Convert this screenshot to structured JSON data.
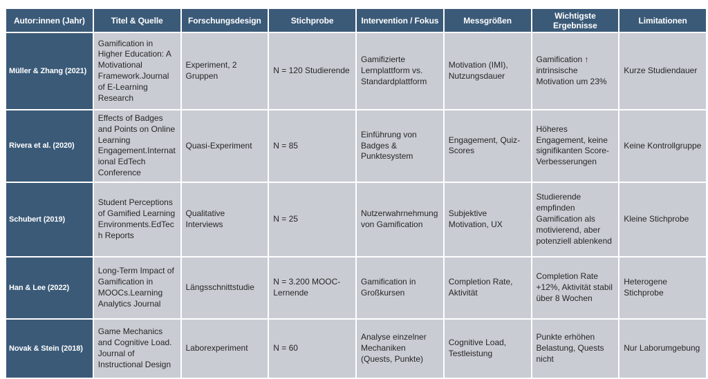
{
  "colors": {
    "header_bg": "#3b5a78",
    "header_text": "#ffffff",
    "cell_bg": "#c9ccd3",
    "cell_text": "#262626",
    "page_bg": "#ffffff"
  },
  "table": {
    "headers": [
      "Autor:innen (Jahr)",
      "Titel & Quelle",
      "Forschungsdesign",
      "Stichprobe",
      "Intervention / Fokus",
      "Messgrößen",
      "Wichtigste Ergebnisse",
      "Limitationen"
    ],
    "rows": [
      [
        "Müller & Zhang (2021)",
        "Gamification in Higher Education: A Motivational Framework.Journal of E-Learning Research",
        "Experiment, 2 Gruppen",
        "N = 120 Studierende",
        "Gamifizierte Lernplattform vs. Standardplattform",
        "Motivation (IMI), Nutzungsdauer",
        "Gamification ↑ intrinsische Motivation um 23%",
        "Kurze Studiendauer"
      ],
      [
        "Rivera et al. (2020)",
        "Effects of Badges and Points on Online Learning Engagement.International EdTech Conference",
        "Quasi-Experiment",
        "N = 85",
        "Einführung von Badges & Punktesystem",
        "Engagement, Quiz-Scores",
        "Höheres Engagement, keine signifikanten Score-Verbesserungen",
        "Keine Kontrollgruppe"
      ],
      [
        "Schubert (2019)",
        "Student Perceptions of Gamified Learning Environments.EdTech Reports",
        "Qualitative Interviews",
        "N = 25",
        "Nutzerwahrnehmung von Gamification",
        "Subjektive Motivation, UX",
        "Studierende empfinden Gamification als motivierend, aber potenziell ablenkend",
        "Kleine Stichprobe"
      ],
      [
        "Han & Lee (2022)",
        "Long-Term Impact of Gamification in MOOCs.Learning Analytics Journal",
        "Längsschnittstudie",
        "N = 3.200 MOOC-Lernende",
        "Gamification in Großkursen",
        "Completion Rate, Aktivität",
        "Completion Rate +12%, Aktivität stabil über 8 Wochen",
        "Heterogene Stichprobe"
      ],
      [
        "Novak & Stein (2018)",
        "Game Mechanics and Cognitive Load. Journal of Instructional Design",
        "Laborexperiment",
        "N = 60",
        "Analyse einzelner Mechaniken (Quests, Punkte)",
        "Cognitive Load, Testleistung",
        "Punkte erhöhen Belastung, Quests nicht",
        "Nur Laborumgebung"
      ]
    ]
  }
}
